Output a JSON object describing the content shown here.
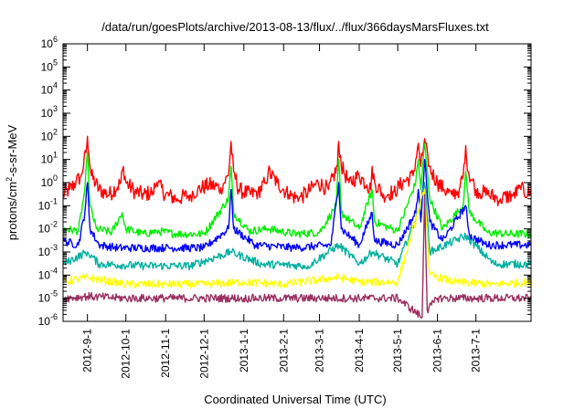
{
  "chart_data": {
    "type": "line",
    "title": "/data/run/goesPlots/archive/2013-08-13/flux/../flux/366daysMarsFluxes.txt",
    "xlabel": "Coordinated Universal Time (UTC)",
    "ylabel": "protons/cm²-s-sr-MeV",
    "ylabel_parts": {
      "prefix": "protons/cm",
      "sup": "2",
      "suffix": "-s-sr-MeV"
    },
    "yscale": "log",
    "ylim": [
      1e-06,
      1000000.0
    ],
    "xlim": [
      "2012-08-13",
      "2013-08-13"
    ],
    "grid": false,
    "legend": "none",
    "x_ticks": [
      {
        "date": "2012-09-01",
        "label": "2012-9-1"
      },
      {
        "date": "2012-10-01",
        "label": "2012-10-1"
      },
      {
        "date": "2012-11-01",
        "label": "2012-11-1"
      },
      {
        "date": "2012-12-01",
        "label": "2012-12-1"
      },
      {
        "date": "2013-01-01",
        "label": "2013-1-1"
      },
      {
        "date": "2013-02-01",
        "label": "2013-2-1"
      },
      {
        "date": "2013-03-01",
        "label": "2013-3-1"
      },
      {
        "date": "2013-04-01",
        "label": "2013-4-1"
      },
      {
        "date": "2013-05-01",
        "label": "2013-5-1"
      },
      {
        "date": "2013-06-01",
        "label": "2013-6-1"
      },
      {
        "date": "2013-07-01",
        "label": "2013-7-1"
      }
    ],
    "y_ticks": [
      {
        "value": 1e-06,
        "base": "10",
        "exp": "-6"
      },
      {
        "value": 1e-05,
        "base": "10",
        "exp": "-5"
      },
      {
        "value": 0.0001,
        "base": "10",
        "exp": "-4"
      },
      {
        "value": 0.001,
        "base": "10",
        "exp": "-3"
      },
      {
        "value": 0.01,
        "base": "10",
        "exp": "-2"
      },
      {
        "value": 0.1,
        "base": "10",
        "exp": "-1"
      },
      {
        "value": 1,
        "base": "10",
        "exp": "0"
      },
      {
        "value": 10,
        "base": "10",
        "exp": "1"
      },
      {
        "value": 100,
        "base": "10",
        "exp": "2"
      },
      {
        "value": 1000,
        "base": "10",
        "exp": "3"
      },
      {
        "value": 10000,
        "base": "10",
        "exp": "4"
      },
      {
        "value": 100000,
        "base": "10",
        "exp": "5"
      },
      {
        "value": 1000000,
        "base": "10",
        "exp": "6"
      }
    ],
    "series": [
      {
        "color": "#ff0000",
        "points": [
          [
            "2012-08-13",
            0.3
          ],
          [
            "2012-08-18",
            0.5
          ],
          [
            "2012-08-23",
            1.0
          ],
          [
            "2012-08-27",
            2.0
          ],
          [
            "2012-08-31",
            20
          ],
          [
            "2012-09-01",
            100
          ],
          [
            "2012-09-02",
            20
          ],
          [
            "2012-09-04",
            2.0
          ],
          [
            "2012-09-10",
            0.5
          ],
          [
            "2012-09-18",
            0.3
          ],
          [
            "2012-09-27",
            1.0
          ],
          [
            "2012-09-29",
            5.0
          ],
          [
            "2012-10-01",
            1.0
          ],
          [
            "2012-10-08",
            0.4
          ],
          [
            "2012-10-15",
            0.3
          ],
          [
            "2012-10-22",
            0.4
          ],
          [
            "2012-10-25",
            1.0
          ],
          [
            "2012-11-01",
            0.3
          ],
          [
            "2012-11-10",
            0.2
          ],
          [
            "2012-11-20",
            0.3
          ],
          [
            "2012-11-26",
            0.5
          ],
          [
            "2012-12-05",
            0.8
          ],
          [
            "2012-12-14",
            0.6
          ],
          [
            "2012-12-20",
            2.0
          ],
          [
            "2012-12-22",
            60
          ],
          [
            "2012-12-24",
            3.0
          ],
          [
            "2012-12-28",
            0.5
          ],
          [
            "2013-01-06",
            0.3
          ],
          [
            "2013-01-12",
            0.4
          ],
          [
            "2013-01-18",
            1.0
          ],
          [
            "2013-01-20",
            3.0
          ],
          [
            "2013-01-27",
            1.0
          ],
          [
            "2013-02-05",
            0.3
          ],
          [
            "2013-02-13",
            0.2
          ],
          [
            "2013-02-20",
            0.4
          ],
          [
            "2013-02-28",
            1.0
          ],
          [
            "2013-03-08",
            0.5
          ],
          [
            "2013-03-15",
            5.0
          ],
          [
            "2013-03-16",
            60
          ],
          [
            "2013-03-18",
            5.0
          ],
          [
            "2013-03-24",
            1.0
          ],
          [
            "2013-04-01",
            2.0
          ],
          [
            "2013-04-07",
            0.8
          ],
          [
            "2013-04-10",
            0.5
          ],
          [
            "2013-04-11",
            5.0
          ],
          [
            "2013-04-13",
            1.0
          ],
          [
            "2013-04-20",
            0.3
          ],
          [
            "2013-04-28",
            0.4
          ],
          [
            "2013-05-05",
            1.0
          ],
          [
            "2013-05-13",
            2.0
          ],
          [
            "2013-05-15",
            10
          ],
          [
            "2013-05-17",
            50
          ],
          [
            "2013-05-19",
            5.0
          ],
          [
            "2013-05-22",
            80
          ],
          [
            "2013-05-25",
            5.0
          ],
          [
            "2013-06-01",
            1.0
          ],
          [
            "2013-06-06",
            0.5
          ],
          [
            "2013-06-12",
            0.3
          ],
          [
            "2013-06-18",
            0.5
          ],
          [
            "2013-06-21",
            2.0
          ],
          [
            "2013-06-23",
            40
          ],
          [
            "2013-06-25",
            3.0
          ],
          [
            "2013-07-01",
            0.5
          ],
          [
            "2013-07-10",
            0.3
          ],
          [
            "2013-07-20",
            0.2
          ],
          [
            "2013-07-30",
            0.3
          ],
          [
            "2013-08-05",
            0.5
          ],
          [
            "2013-08-13",
            0.3
          ]
        ]
      },
      {
        "color": "#00ee00",
        "points": [
          [
            "2012-08-13",
            0.01
          ],
          [
            "2012-08-25",
            0.008
          ],
          [
            "2012-08-30",
            0.5
          ],
          [
            "2012-09-01",
            20
          ],
          [
            "2012-09-03",
            0.1
          ],
          [
            "2012-09-08",
            0.01
          ],
          [
            "2012-09-20",
            0.007
          ],
          [
            "2012-09-28",
            0.05
          ],
          [
            "2012-10-01",
            0.01
          ],
          [
            "2012-10-15",
            0.006
          ],
          [
            "2012-10-25",
            0.008
          ],
          [
            "2012-11-10",
            0.006
          ],
          [
            "2012-12-01",
            0.006
          ],
          [
            "2012-12-20",
            0.2
          ],
          [
            "2012-12-22",
            5.0
          ],
          [
            "2012-12-24",
            0.05
          ],
          [
            "2013-01-05",
            0.008
          ],
          [
            "2013-01-20",
            0.01
          ],
          [
            "2013-02-10",
            0.006
          ],
          [
            "2013-03-01",
            0.007
          ],
          [
            "2013-03-14",
            0.1
          ],
          [
            "2013-03-16",
            10
          ],
          [
            "2013-03-18",
            0.05
          ],
          [
            "2013-04-01",
            0.01
          ],
          [
            "2013-04-11",
            0.5
          ],
          [
            "2013-04-13",
            0.02
          ],
          [
            "2013-05-01",
            0.008
          ],
          [
            "2013-05-15",
            1.0
          ],
          [
            "2013-05-17",
            10
          ],
          [
            "2013-05-19",
            0.5
          ],
          [
            "2013-05-22",
            50
          ],
          [
            "2013-05-26",
            0.2
          ],
          [
            "2013-06-05",
            0.01
          ],
          [
            "2013-06-21",
            0.1
          ],
          [
            "2013-06-23",
            3.0
          ],
          [
            "2013-06-26",
            0.05
          ],
          [
            "2013-07-10",
            0.007
          ],
          [
            "2013-07-25",
            0.006
          ],
          [
            "2013-08-13",
            0.006
          ]
        ]
      },
      {
        "color": "#0000ff",
        "points": [
          [
            "2012-08-13",
            0.003
          ],
          [
            "2012-08-25",
            0.002
          ],
          [
            "2012-08-30",
            0.05
          ],
          [
            "2012-09-01",
            1.0
          ],
          [
            "2012-09-03",
            0.01
          ],
          [
            "2012-09-10",
            0.002
          ],
          [
            "2012-09-25",
            0.0015
          ],
          [
            "2012-10-10",
            0.0015
          ],
          [
            "2012-11-01",
            0.0015
          ],
          [
            "2012-12-01",
            0.0015
          ],
          [
            "2012-12-20",
            0.01
          ],
          [
            "2012-12-22",
            0.5
          ],
          [
            "2012-12-24",
            0.01
          ],
          [
            "2013-01-10",
            0.002
          ],
          [
            "2013-02-10",
            0.0015
          ],
          [
            "2013-03-10",
            0.002
          ],
          [
            "2013-03-16",
            1.0
          ],
          [
            "2013-03-18",
            0.01
          ],
          [
            "2013-04-01",
            0.002
          ],
          [
            "2013-04-11",
            0.05
          ],
          [
            "2013-04-13",
            0.003
          ],
          [
            "2013-05-01",
            0.002
          ],
          [
            "2013-05-15",
            0.05
          ],
          [
            "2013-05-17",
            0.5
          ],
          [
            "2013-05-19",
            0.02
          ],
          [
            "2013-05-22",
            10
          ],
          [
            "2013-05-26",
            0.02
          ],
          [
            "2013-06-05",
            0.003
          ],
          [
            "2013-06-23",
            0.1
          ],
          [
            "2013-06-26",
            0.005
          ],
          [
            "2013-07-10",
            0.002
          ],
          [
            "2013-08-13",
            0.002
          ]
        ]
      },
      {
        "color": "#00b0a0",
        "points": [
          [
            "2012-08-13",
            0.0003
          ],
          [
            "2012-09-01",
            0.001
          ],
          [
            "2012-09-10",
            0.0003
          ],
          [
            "2012-10-15",
            0.00025
          ],
          [
            "2012-11-20",
            0.00025
          ],
          [
            "2012-12-22",
            0.001
          ],
          [
            "2013-01-15",
            0.0003
          ],
          [
            "2013-02-20",
            0.00025
          ],
          [
            "2013-03-16",
            0.002
          ],
          [
            "2013-04-01",
            0.0003
          ],
          [
            "2013-04-11",
            0.001
          ],
          [
            "2013-05-01",
            0.0003
          ],
          [
            "2013-05-17",
            0.05
          ],
          [
            "2013-05-22",
            1.0
          ],
          [
            "2013-05-26",
            0.001
          ],
          [
            "2013-06-23",
            0.005
          ],
          [
            "2013-07-15",
            0.0003
          ],
          [
            "2013-08-13",
            0.0003
          ]
        ]
      },
      {
        "color": "#ffff00",
        "points": [
          [
            "2012-08-13",
            5e-05
          ],
          [
            "2012-09-01",
            8e-05
          ],
          [
            "2012-10-01",
            4e-05
          ],
          [
            "2012-11-01",
            4e-05
          ],
          [
            "2012-12-01",
            4e-05
          ],
          [
            "2013-01-01",
            5e-05
          ],
          [
            "2013-02-01",
            4e-05
          ],
          [
            "2013-03-16",
            8e-05
          ],
          [
            "2013-04-01",
            5e-05
          ],
          [
            "2013-05-01",
            5e-05
          ],
          [
            "2013-05-22",
            0.5
          ],
          [
            "2013-05-26",
            0.0001
          ],
          [
            "2013-06-15",
            5e-05
          ],
          [
            "2013-07-15",
            4e-05
          ],
          [
            "2013-08-13",
            5e-05
          ]
        ]
      },
      {
        "color": "#9a3060",
        "points": [
          [
            "2012-08-13",
            1e-05
          ],
          [
            "2012-09-01",
            1.2e-05
          ],
          [
            "2012-10-01",
            1e-05
          ],
          [
            "2012-11-01",
            1e-05
          ],
          [
            "2012-12-01",
            1e-05
          ],
          [
            "2013-01-01",
            1e-05
          ],
          [
            "2013-02-01",
            1e-05
          ],
          [
            "2013-03-01",
            1e-05
          ],
          [
            "2013-04-01",
            1e-05
          ],
          [
            "2013-05-01",
            1e-05
          ],
          [
            "2013-05-20",
            1.5e-06
          ],
          [
            "2013-05-22",
            0.3
          ],
          [
            "2013-05-24",
            3e-06
          ],
          [
            "2013-06-01",
            1e-05
          ],
          [
            "2013-07-01",
            1e-05
          ],
          [
            "2013-08-13",
            1e-05
          ]
        ]
      }
    ]
  }
}
